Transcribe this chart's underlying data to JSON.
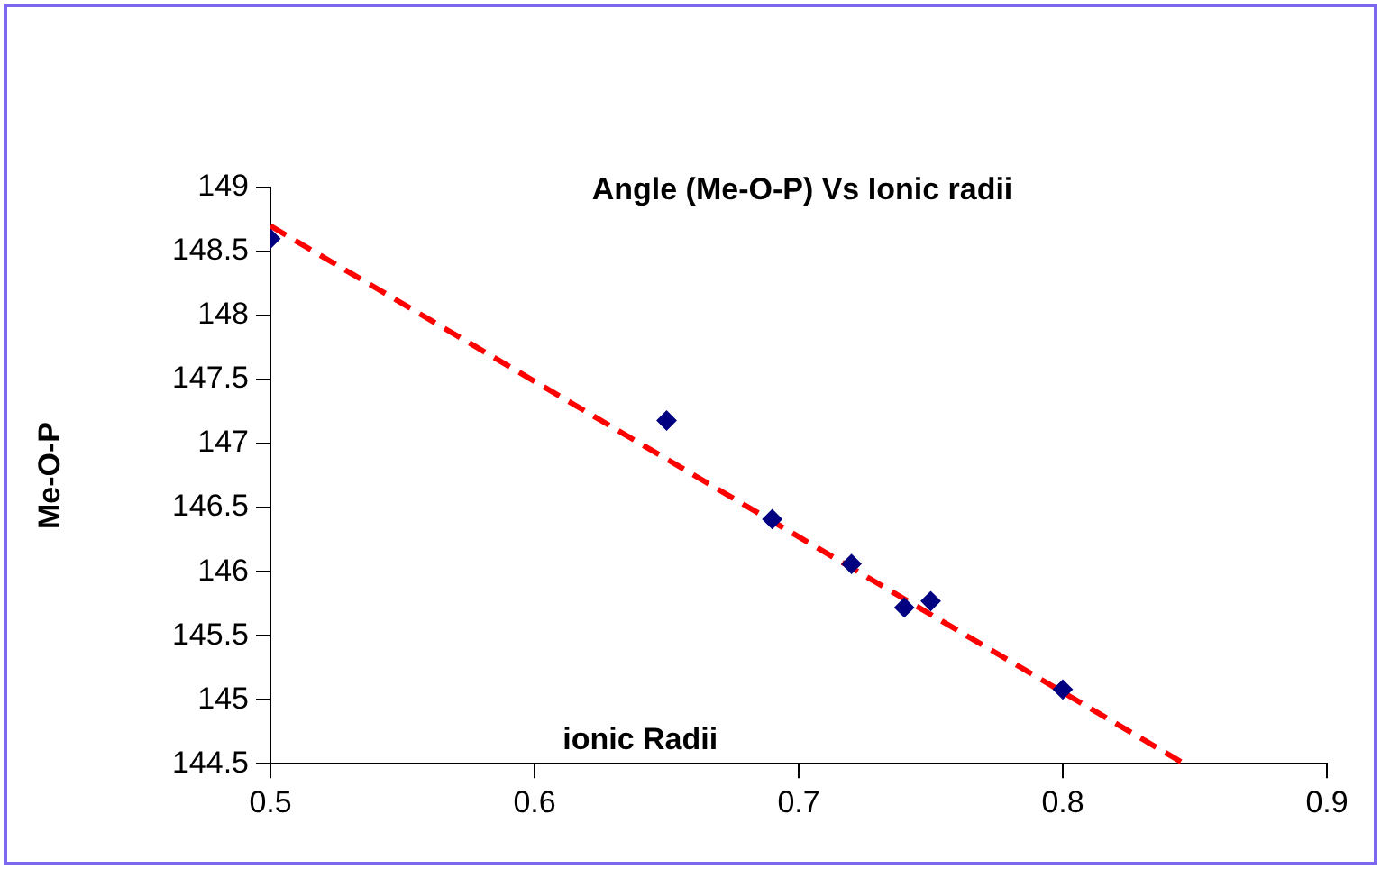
{
  "chart_data": {
    "type": "scatter",
    "title": "Angle (Me-O-P) Vs Ionic radii",
    "xlabel": "ionic Radii",
    "ylabel": "Me-O-P",
    "x": [
      0.5,
      0.65,
      0.69,
      0.72,
      0.74,
      0.75,
      0.8
    ],
    "series": [
      {
        "color": "#000080",
        "marker": "diamond",
        "values": [
          148.6,
          147.18,
          146.41,
          146.06,
          145.72,
          145.77,
          145.08
        ]
      },
      {
        "type": "line",
        "color": "#ff0000",
        "line_style": "dashed",
        "marker": "none",
        "x": [
          0.5,
          0.846
        ],
        "values": [
          148.7,
          144.5
        ]
      }
    ],
    "xlim": [
      0.5,
      0.9
    ],
    "xticks": [
      0.5,
      0.6,
      0.7,
      0.8,
      0.9
    ],
    "ylim": [
      144.5,
      149
    ],
    "yticks": [
      144.5,
      145,
      145.5,
      146,
      146.5,
      147,
      147.5,
      148,
      148.5,
      149
    ],
    "grid": false,
    "legend": false
  }
}
